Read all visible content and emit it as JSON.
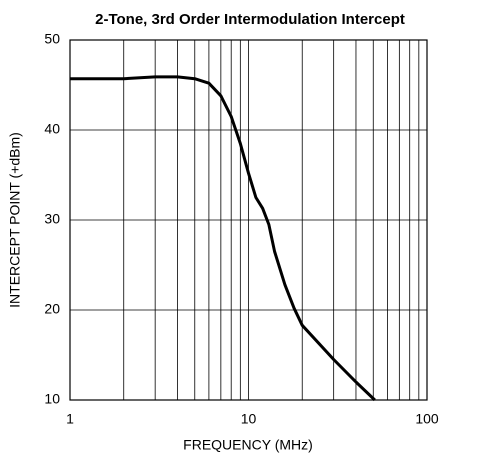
{
  "chart_data": {
    "type": "line",
    "title": "2-Tone, 3rd Order Intermodulation Intercept",
    "xlabel": "FREQUENCY (MHz)",
    "ylabel": "INTERCEPT POINT (+dBm)",
    "xscale": "log",
    "grid": true,
    "xlim": [
      1,
      100
    ],
    "xticks": [
      1,
      10,
      100
    ],
    "x_minor_ticks": [
      2,
      3,
      4,
      5,
      6,
      7,
      8,
      9,
      20,
      30,
      40,
      50,
      60,
      70,
      80,
      90
    ],
    "ylim": [
      10,
      50
    ],
    "yticks": [
      10,
      20,
      30,
      40,
      50
    ],
    "x": [
      1,
      2,
      3,
      4,
      5,
      6,
      7,
      8,
      9,
      10,
      11,
      12,
      13,
      14,
      16,
      18,
      20,
      30,
      40,
      51
    ],
    "series": [
      {
        "color": "#000000",
        "values": [
          45.7,
          45.7,
          45.9,
          45.9,
          45.7,
          45.2,
          43.8,
          41.5,
          38.5,
          35.2,
          32.5,
          31.3,
          29.5,
          26.5,
          22.8,
          20.2,
          18.3,
          14.5,
          12.0,
          10.0
        ]
      }
    ]
  }
}
